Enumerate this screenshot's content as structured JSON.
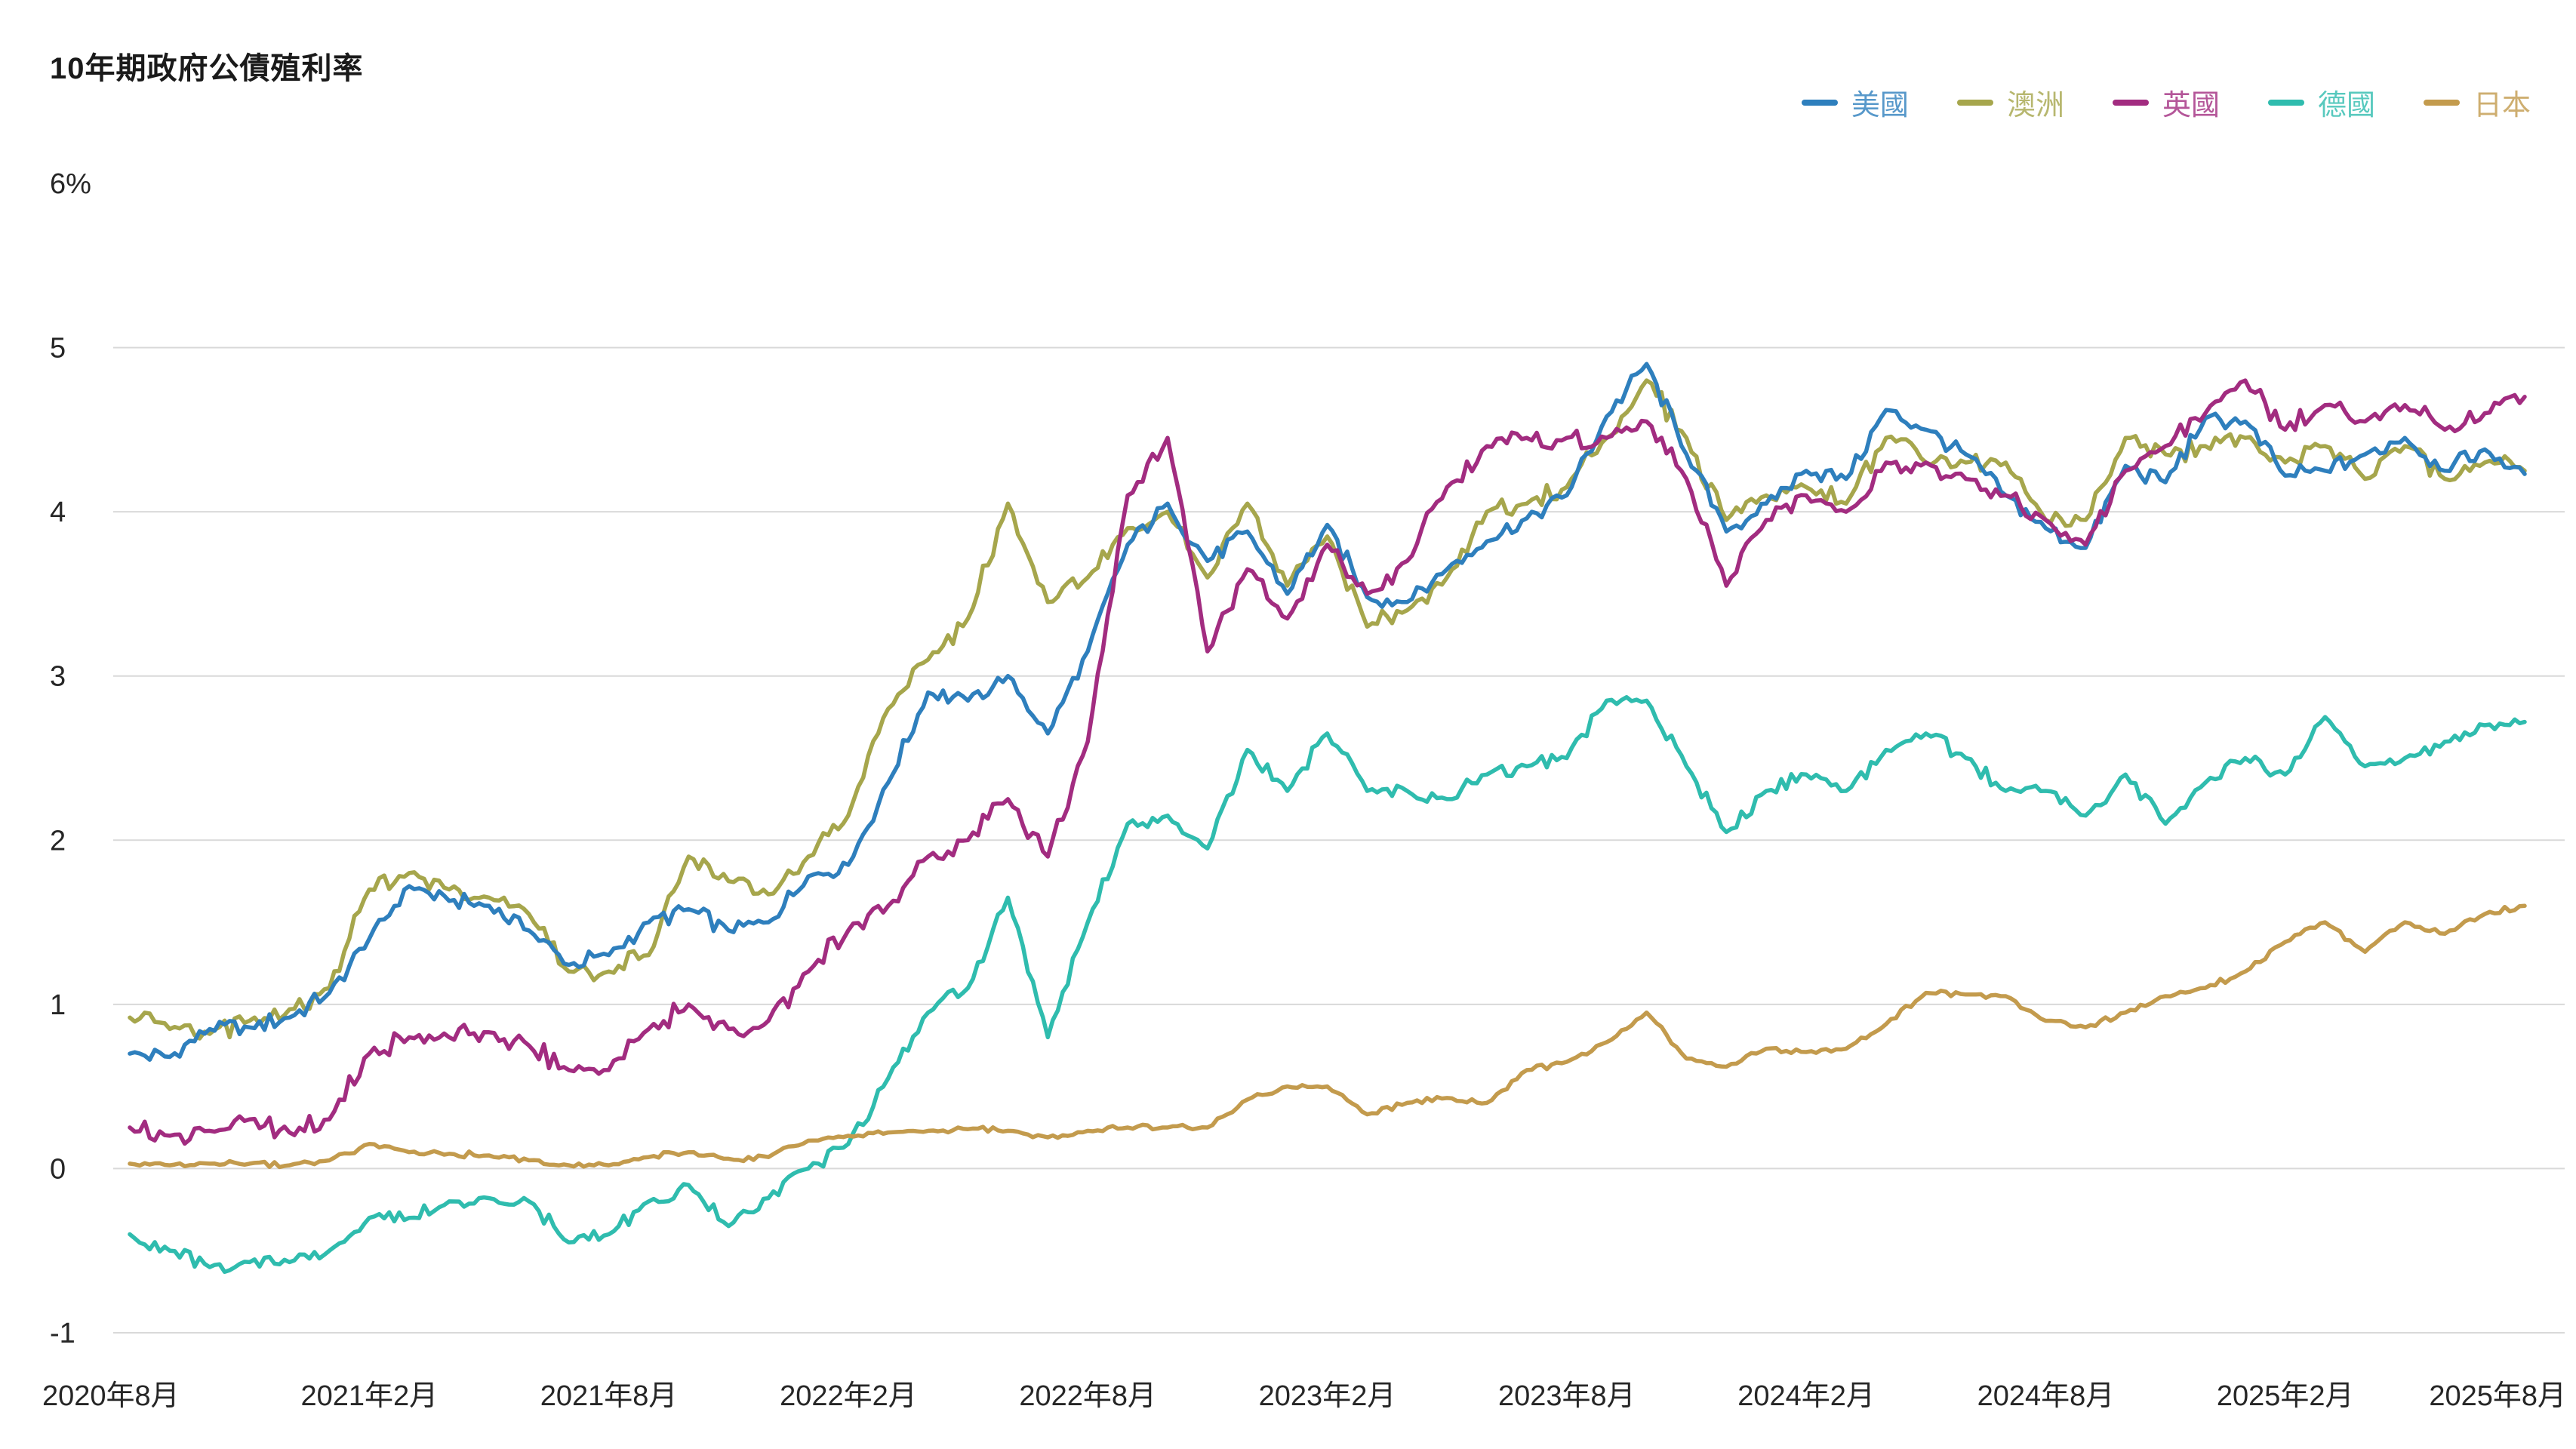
{
  "header": {
    "title": "10年期政府公債殖利率"
  },
  "chart_data": {
    "type": "line",
    "title": "10年期政府公債殖利率",
    "xlabel": "",
    "ylabel": "",
    "ylim": [
      -1,
      6
    ],
    "grid": true,
    "legend_position": "top-right",
    "background": "#ffffff",
    "text_color": "#262626",
    "grid_color": "#d9d9d9",
    "yticks": {
      "values": [
        6,
        5,
        4,
        3,
        2,
        1,
        0,
        -1
      ],
      "labels": [
        "6%",
        "5",
        "4",
        "3",
        "2",
        "1",
        "0",
        "-1"
      ]
    },
    "xtick_labels": [
      "2020年8月",
      "2021年2月",
      "2021年8月",
      "2022年2月",
      "2022年8月",
      "2023年2月",
      "2023年8月",
      "2024年2月",
      "2024年8月",
      "2025年2月",
      "2025年8月"
    ],
    "categories": [
      "2020年8月",
      "2020年9月",
      "2020年10月",
      "2020年11月",
      "2020年12月",
      "2021年1月",
      "2021年2月",
      "2021年3月",
      "2021年4月",
      "2021年5月",
      "2021年6月",
      "2021年7月",
      "2021年8月",
      "2021年9月",
      "2021年10月",
      "2021年11月",
      "2021年12月",
      "2022年1月",
      "2022年2月",
      "2022年3月",
      "2022年4月",
      "2022年5月",
      "2022年6月",
      "2022年7月",
      "2022年8月",
      "2022年9月",
      "2022年10月",
      "2022年11月",
      "2022年12月",
      "2023年1月",
      "2023年2月",
      "2023年3月",
      "2023年4月",
      "2023年5月",
      "2023年6月",
      "2023年7月",
      "2023年8月",
      "2023年9月",
      "2023年10月",
      "2023年11月",
      "2023年12月",
      "2024年1月",
      "2024年2月",
      "2024年3月",
      "2024年4月",
      "2024年5月",
      "2024年6月",
      "2024年7月",
      "2024年8月",
      "2024年9月",
      "2024年10月",
      "2024年11月",
      "2024年12月",
      "2025年1月",
      "2025年2月",
      "2025年3月",
      "2025年4月",
      "2025年5月",
      "2025年6月",
      "2025年7月",
      "2025年8月"
    ],
    "series": [
      {
        "name": "美國",
        "color": "#2e7fbd",
        "jitter": 0.06,
        "values": [
          0.7,
          0.68,
          0.85,
          0.86,
          0.92,
          1.07,
          1.4,
          1.72,
          1.63,
          1.6,
          1.45,
          1.24,
          1.3,
          1.5,
          1.58,
          1.45,
          1.5,
          1.78,
          1.85,
          2.35,
          2.9,
          2.85,
          3.0,
          2.65,
          3.15,
          3.8,
          4.05,
          3.7,
          3.88,
          3.5,
          3.92,
          3.48,
          3.45,
          3.65,
          3.82,
          3.96,
          4.1,
          4.58,
          4.9,
          4.35,
          3.88,
          4.05,
          4.25,
          4.2,
          4.62,
          4.5,
          4.35,
          4.1,
          3.9,
          3.78,
          4.28,
          4.18,
          4.57,
          4.55,
          4.22,
          4.25,
          4.35,
          4.45,
          4.25,
          4.38,
          4.23
        ]
      },
      {
        "name": "澳洲",
        "color": "#a6a64c",
        "jitter": 0.07,
        "values": [
          0.92,
          0.85,
          0.82,
          0.9,
          0.97,
          1.1,
          1.7,
          1.8,
          1.7,
          1.65,
          1.55,
          1.2,
          1.2,
          1.3,
          1.9,
          1.75,
          1.67,
          1.9,
          2.15,
          2.8,
          3.1,
          3.35,
          4.05,
          3.45,
          3.6,
          3.9,
          4.0,
          3.6,
          4.05,
          3.55,
          3.85,
          3.3,
          3.4,
          3.6,
          4.0,
          4.05,
          4.15,
          4.45,
          4.8,
          4.45,
          3.95,
          4.1,
          4.15,
          4.05,
          4.45,
          4.3,
          4.3,
          4.3,
          3.95,
          3.95,
          4.45,
          4.35,
          4.4,
          4.45,
          4.3,
          4.4,
          4.2,
          4.4,
          4.2,
          4.3,
          4.25
        ]
      },
      {
        "name": "英國",
        "color": "#a22c80",
        "jitter": 0.07,
        "values": [
          0.25,
          0.2,
          0.23,
          0.3,
          0.22,
          0.3,
          0.7,
          0.8,
          0.8,
          0.83,
          0.75,
          0.6,
          0.6,
          0.85,
          1.0,
          0.85,
          0.9,
          1.2,
          1.45,
          1.6,
          1.9,
          2.0,
          2.25,
          1.9,
          2.6,
          4.1,
          4.45,
          3.15,
          3.65,
          3.35,
          3.8,
          3.5,
          3.7,
          4.15,
          4.4,
          4.45,
          4.45,
          4.45,
          4.55,
          4.2,
          3.55,
          3.95,
          4.1,
          4.0,
          4.3,
          4.3,
          4.2,
          4.1,
          3.95,
          3.8,
          4.25,
          4.4,
          4.6,
          4.8,
          4.5,
          4.65,
          4.55,
          4.65,
          4.5,
          4.6,
          4.7
        ]
      },
      {
        "name": "德國",
        "color": "#2fbcae",
        "jitter": 0.05,
        "values": [
          -0.4,
          -0.5,
          -0.6,
          -0.57,
          -0.57,
          -0.5,
          -0.3,
          -0.3,
          -0.2,
          -0.18,
          -0.2,
          -0.45,
          -0.4,
          -0.2,
          -0.1,
          -0.35,
          -0.18,
          0.0,
          0.15,
          0.55,
          0.95,
          1.1,
          1.65,
          0.8,
          1.5,
          2.1,
          2.15,
          1.95,
          2.55,
          2.3,
          2.65,
          2.3,
          2.3,
          2.25,
          2.4,
          2.45,
          2.5,
          2.85,
          2.85,
          2.45,
          2.05,
          2.3,
          2.4,
          2.3,
          2.55,
          2.65,
          2.5,
          2.3,
          2.3,
          2.15,
          2.4,
          2.1,
          2.35,
          2.5,
          2.4,
          2.75,
          2.45,
          2.5,
          2.6,
          2.7,
          2.72
        ]
      },
      {
        "name": "日本",
        "color": "#c39b4d",
        "jitter": 0.02,
        "values": [
          0.03,
          0.02,
          0.03,
          0.03,
          0.02,
          0.05,
          0.15,
          0.1,
          0.09,
          0.08,
          0.05,
          0.02,
          0.02,
          0.07,
          0.1,
          0.06,
          0.07,
          0.17,
          0.2,
          0.22,
          0.23,
          0.24,
          0.23,
          0.19,
          0.23,
          0.25,
          0.25,
          0.25,
          0.42,
          0.5,
          0.5,
          0.33,
          0.4,
          0.43,
          0.4,
          0.6,
          0.65,
          0.77,
          0.95,
          0.67,
          0.62,
          0.73,
          0.71,
          0.73,
          0.88,
          1.07,
          1.06,
          1.05,
          0.9,
          0.86,
          0.95,
          1.05,
          1.1,
          1.2,
          1.38,
          1.5,
          1.32,
          1.5,
          1.43,
          1.55,
          1.6
        ]
      }
    ]
  }
}
